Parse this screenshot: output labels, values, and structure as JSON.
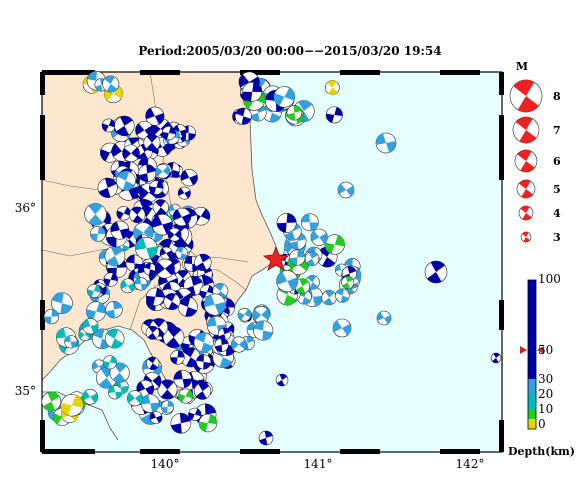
{
  "title": "Period:2005/03/20 00:00−−2015/03/20 19:54",
  "map": {
    "lon_ticks": [
      "140°",
      "141°",
      "142°"
    ],
    "lat_ticks": [
      "36°",
      "35°"
    ]
  },
  "magnitude_legend": {
    "header": "M",
    "items": [
      "8",
      "7",
      "6",
      "5",
      "4",
      "3"
    ],
    "color": "#ee2222"
  },
  "depth_legend": {
    "title": "Depth(km)",
    "ticks": [
      "100",
      "50",
      "30",
      "20",
      "10",
      "0"
    ],
    "bands": [
      {
        "label": "0-10",
        "color": "#e8d400"
      },
      {
        "label": "10-20",
        "color": "#22cc22"
      },
      {
        "label": "20-30",
        "color": "#00bbbb"
      },
      {
        "label": "30-50",
        "color": "#33a0e0"
      },
      {
        "label": "50-100",
        "color": "#0000a8"
      }
    ],
    "marker": "50"
  },
  "colors": {
    "sea": "#e6ffff",
    "land": "#fde7cf",
    "deep": "#0000a8",
    "mid": "#33a0e0",
    "shallow": "#00bbbb",
    "shallower": "#22cc22",
    "surface": "#e8d400",
    "mainshock": "#ee2222"
  }
}
